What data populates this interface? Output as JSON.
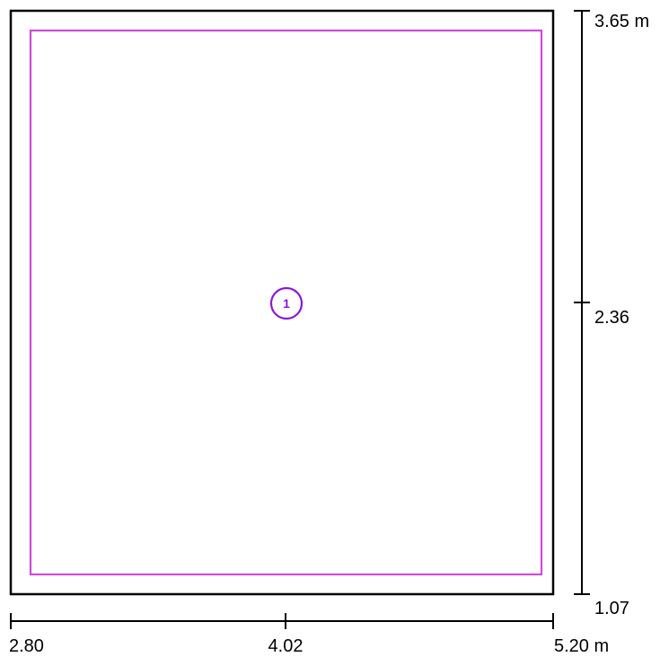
{
  "plan": {
    "x_scale": {
      "ticks": [
        "2.80",
        "4.02",
        "5.20 m"
      ]
    },
    "y_scale": {
      "ticks": [
        "3.65 m",
        "2.36",
        "1.07"
      ]
    },
    "marker": {
      "label": "1"
    },
    "colors": {
      "outer_boundary": "#000000",
      "inner_boundary": "#d04ad8",
      "marker": "#8a18d6",
      "dimension_lines": "#000000"
    }
  }
}
